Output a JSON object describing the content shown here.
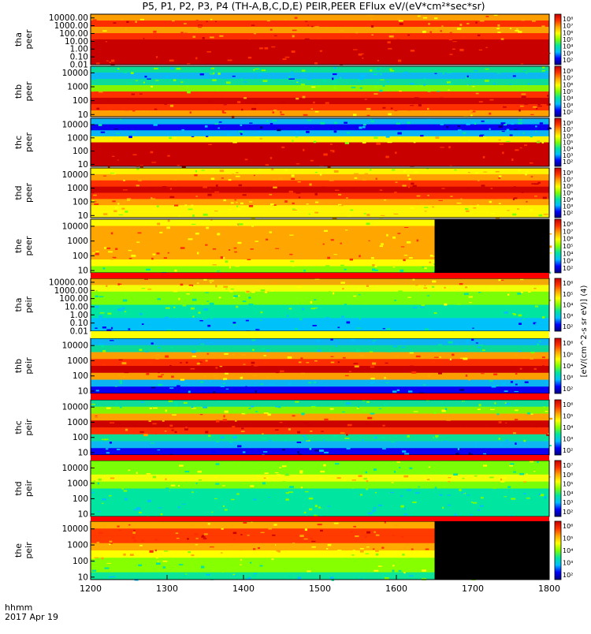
{
  "title": "P5, P1, P2, P3, P4 (TH-A,B,C,D,E) PEIR,PEER EFlux eV/(eV*cm²*sec*sr)",
  "footer": {
    "time_label": "hhmm",
    "date_label": "2017 Apr 19"
  },
  "colorbar_unit_label": "[eV/(cm^2-s sr eV)] (4)",
  "colors": {
    "scale": [
      "#000080",
      "#0000ff",
      "#00bfff",
      "#00e5a0",
      "#7fff00",
      "#ffff00",
      "#ffa500",
      "#ff3000",
      "#c80000"
    ],
    "fill_black": "#000000",
    "band_red": "#ff0000",
    "band_yellow": "#ffff00"
  },
  "chart_data": {
    "type": "heatmap",
    "x_axis": {
      "range": [
        1200,
        1800
      ],
      "ticks": [
        "1200",
        "1300",
        "1400",
        "1500",
        "1600",
        "1700",
        "1800"
      ],
      "label": "hhmm"
    },
    "panels": [
      {
        "probe": "tha",
        "instrument": "peer",
        "y_scale": "log",
        "y_ticks": [
          "10000.00",
          "1000.00",
          "100.00",
          "10.00",
          "1.00",
          "0.10",
          "0.01"
        ],
        "y_range": [
          0.01,
          30000
        ],
        "cbar_ticks": [
          "10⁸",
          "10⁷",
          "10⁶",
          "10⁵",
          "10⁴",
          "10³",
          "10²"
        ],
        "data_gap_start": 1800
      },
      {
        "probe": "thb",
        "instrument": "peer",
        "y_scale": "log",
        "y_ticks": [
          "10000",
          "1000",
          "100",
          "10"
        ],
        "y_range": [
          7,
          30000
        ],
        "cbar_ticks": [
          "10⁸",
          "10⁷",
          "10⁶",
          "10⁵",
          "10⁴",
          "10³",
          "10²"
        ],
        "data_gap_start": 1800
      },
      {
        "probe": "thc",
        "instrument": "peer",
        "y_scale": "log",
        "y_ticks": [
          "10000",
          "1000",
          "100",
          "10"
        ],
        "y_range": [
          7,
          30000
        ],
        "cbar_ticks": [
          "10⁸",
          "10⁷",
          "10⁶",
          "10⁵",
          "10⁴",
          "10³",
          "10²"
        ],
        "data_gap_start": 1800
      },
      {
        "probe": "thd",
        "instrument": "peer",
        "y_scale": "log",
        "y_ticks": [
          "10000",
          "1000",
          "100",
          "10"
        ],
        "y_range": [
          7,
          30000
        ],
        "cbar_ticks": [
          "10⁸",
          "10⁷",
          "10⁶",
          "10⁵",
          "10⁴",
          "10³",
          "10²"
        ],
        "data_gap_start": 1800
      },
      {
        "probe": "the",
        "instrument": "peer",
        "y_scale": "log",
        "y_ticks": [
          "10000",
          "1000",
          "100",
          "10"
        ],
        "y_range": [
          7,
          30000
        ],
        "cbar_ticks": [
          "10⁸",
          "10⁷",
          "10⁶",
          "10⁵",
          "10⁴",
          "10³",
          "10²"
        ],
        "data_gap_start": 1650
      },
      {
        "probe": "tha",
        "instrument": "peir",
        "y_scale": "log",
        "y_ticks": [
          "10000.00",
          "1000.00",
          "100.00",
          "10.00",
          "1.00",
          "0.10",
          "0.01"
        ],
        "y_range": [
          0.01,
          30000
        ],
        "cbar_ticks": [
          "10⁶",
          "10⁵",
          "10⁴",
          "10³",
          "10²"
        ],
        "data_gap_start": 1800
      },
      {
        "probe": "thb",
        "instrument": "peir",
        "y_scale": "log",
        "y_ticks": [
          "10000",
          "1000",
          "100",
          "10"
        ],
        "y_range": [
          7,
          30000
        ],
        "cbar_ticks": [
          "10⁶",
          "10⁵",
          "10⁴",
          "10³",
          "10²"
        ],
        "data_gap_start": 1800
      },
      {
        "probe": "thc",
        "instrument": "peir",
        "y_scale": "log",
        "y_ticks": [
          "10000",
          "1000",
          "100",
          "10"
        ],
        "y_range": [
          7,
          30000
        ],
        "cbar_ticks": [
          "10⁶",
          "10⁵",
          "10⁴",
          "10³",
          "10²"
        ],
        "data_gap_start": 1800
      },
      {
        "probe": "thd",
        "instrument": "peir",
        "y_scale": "log",
        "y_ticks": [
          "10000",
          "1000",
          "100",
          "10"
        ],
        "y_range": [
          7,
          30000
        ],
        "cbar_ticks": [
          "10⁷",
          "10⁶",
          "10⁵",
          "10⁴",
          "10³",
          "10²"
        ],
        "data_gap_start": 1800
      },
      {
        "probe": "the",
        "instrument": "peir",
        "y_scale": "log",
        "y_ticks": [
          "10000",
          "1000",
          "100",
          "10"
        ],
        "y_range": [
          7,
          30000
        ],
        "cbar_ticks": [
          "10⁶",
          "10⁵",
          "10⁴",
          "10³",
          "10²"
        ],
        "data_gap_start": 1650
      }
    ]
  }
}
